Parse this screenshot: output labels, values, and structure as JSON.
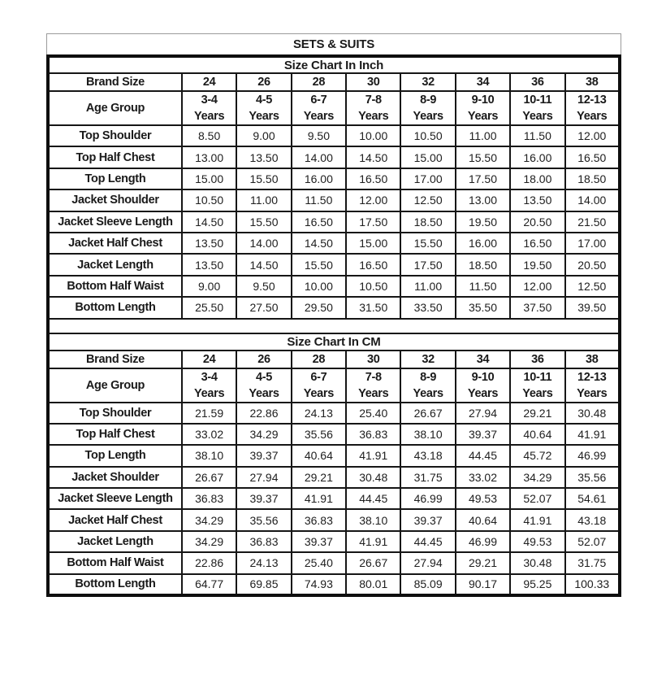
{
  "title": "SETS & SUITS",
  "tables": [
    {
      "caption": "Size Chart In Inch",
      "brand_size_label": "Brand Size",
      "age_group_label": "Age Group",
      "age_suffix": "Years",
      "brand_sizes": [
        "24",
        "26",
        "28",
        "30",
        "32",
        "34",
        "36",
        "38"
      ],
      "age_groups": [
        "3-4",
        "4-5",
        "6-7",
        "7-8",
        "8-9",
        "9-10",
        "10-11",
        "12-13"
      ],
      "rows": [
        {
          "label": "Top Shoulder",
          "values": [
            "8.50",
            "9.00",
            "9.50",
            "10.00",
            "10.50",
            "11.00",
            "11.50",
            "12.00"
          ]
        },
        {
          "label": "Top Half Chest",
          "values": [
            "13.00",
            "13.50",
            "14.00",
            "14.50",
            "15.00",
            "15.50",
            "16.00",
            "16.50"
          ]
        },
        {
          "label": "Top Length",
          "values": [
            "15.00",
            "15.50",
            "16.00",
            "16.50",
            "17.00",
            "17.50",
            "18.00",
            "18.50"
          ]
        },
        {
          "label": "Jacket Shoulder",
          "values": [
            "10.50",
            "11.00",
            "11.50",
            "12.00",
            "12.50",
            "13.00",
            "13.50",
            "14.00"
          ]
        },
        {
          "label": "Jacket Sleeve Length",
          "values": [
            "14.50",
            "15.50",
            "16.50",
            "17.50",
            "18.50",
            "19.50",
            "20.50",
            "21.50"
          ]
        },
        {
          "label": "Jacket Half Chest",
          "values": [
            "13.50",
            "14.00",
            "14.50",
            "15.00",
            "15.50",
            "16.00",
            "16.50",
            "17.00"
          ]
        },
        {
          "label": "Jacket Length",
          "values": [
            "13.50",
            "14.50",
            "15.50",
            "16.50",
            "17.50",
            "18.50",
            "19.50",
            "20.50"
          ]
        },
        {
          "label": "Bottom Half Waist",
          "values": [
            "9.00",
            "9.50",
            "10.00",
            "10.50",
            "11.00",
            "11.50",
            "12.00",
            "12.50"
          ]
        },
        {
          "label": "Bottom Length",
          "values": [
            "25.50",
            "27.50",
            "29.50",
            "31.50",
            "33.50",
            "35.50",
            "37.50",
            "39.50"
          ]
        }
      ]
    },
    {
      "caption": "Size Chart In CM",
      "brand_size_label": "Brand Size",
      "age_group_label": "Age Group",
      "age_suffix": "Years",
      "brand_sizes": [
        "24",
        "26",
        "28",
        "30",
        "32",
        "34",
        "36",
        "38"
      ],
      "age_groups": [
        "3-4",
        "4-5",
        "6-7",
        "7-8",
        "8-9",
        "9-10",
        "10-11",
        "12-13"
      ],
      "rows": [
        {
          "label": "Top Shoulder",
          "values": [
            "21.59",
            "22.86",
            "24.13",
            "25.40",
            "26.67",
            "27.94",
            "29.21",
            "30.48"
          ]
        },
        {
          "label": "Top Half Chest",
          "values": [
            "33.02",
            "34.29",
            "35.56",
            "36.83",
            "38.10",
            "39.37",
            "40.64",
            "41.91"
          ]
        },
        {
          "label": "Top Length",
          "values": [
            "38.10",
            "39.37",
            "40.64",
            "41.91",
            "43.18",
            "44.45",
            "45.72",
            "46.99"
          ]
        },
        {
          "label": "Jacket Shoulder",
          "values": [
            "26.67",
            "27.94",
            "29.21",
            "30.48",
            "31.75",
            "33.02",
            "34.29",
            "35.56"
          ]
        },
        {
          "label": "Jacket Sleeve Length",
          "values": [
            "36.83",
            "39.37",
            "41.91",
            "44.45",
            "46.99",
            "49.53",
            "52.07",
            "54.61"
          ]
        },
        {
          "label": "Jacket Half Chest",
          "values": [
            "34.29",
            "35.56",
            "36.83",
            "38.10",
            "39.37",
            "40.64",
            "41.91",
            "43.18"
          ]
        },
        {
          "label": "Jacket Length",
          "values": [
            "34.29",
            "36.83",
            "39.37",
            "41.91",
            "44.45",
            "46.99",
            "49.53",
            "52.07"
          ]
        },
        {
          "label": "Bottom Half Waist",
          "values": [
            "22.86",
            "24.13",
            "25.40",
            "26.67",
            "27.94",
            "29.21",
            "30.48",
            "31.75"
          ]
        },
        {
          "label": "Bottom Length",
          "values": [
            "64.77",
            "69.85",
            "74.93",
            "80.01",
            "85.09",
            "90.17",
            "95.25",
            "100.33"
          ]
        }
      ]
    }
  ]
}
